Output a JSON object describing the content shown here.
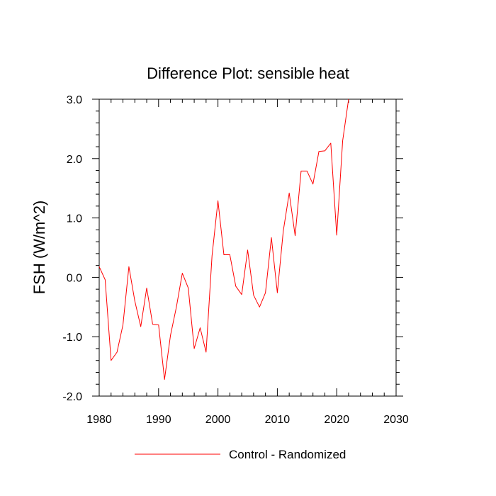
{
  "chart_data": {
    "type": "line",
    "title": "Difference Plot: sensible heat",
    "xlabel": "",
    "ylabel": "FSH  (W/m^2)",
    "xlim": [
      1980,
      2030
    ],
    "ylim": [
      -2.0,
      3.0
    ],
    "x_ticks": [
      1980,
      1990,
      2000,
      2010,
      2020,
      2030
    ],
    "x_tick_labels": [
      "1980",
      "1990",
      "2000",
      "2010",
      "2020",
      "2030"
    ],
    "y_ticks": [
      -2.0,
      -1.0,
      0.0,
      1.0,
      2.0,
      3.0
    ],
    "y_tick_labels": [
      "-2.0",
      "-1.0",
      "0.0",
      "1.0",
      "2.0",
      "3.0"
    ],
    "legend_position": "bottom-center",
    "series": [
      {
        "name": "Control - Randomized",
        "color": "#ff0000",
        "x": [
          1980,
          1981,
          1982,
          1983,
          1984,
          1985,
          1986,
          1987,
          1988,
          1989,
          1990,
          1991,
          1992,
          1993,
          1994,
          1995,
          1996,
          1997,
          1998,
          1999,
          2000,
          2001,
          2002,
          2003,
          2004,
          2005,
          2006,
          2007,
          2008,
          2009,
          2010,
          2011,
          2012,
          2013,
          2014,
          2015,
          2016,
          2017,
          2018,
          2019,
          2020,
          2021,
          2022
        ],
        "y": [
          0.18,
          -0.04,
          -1.4,
          -1.26,
          -0.8,
          0.18,
          -0.4,
          -0.83,
          -0.18,
          -0.79,
          -0.8,
          -1.72,
          -0.98,
          -0.5,
          0.07,
          -0.18,
          -1.2,
          -0.85,
          -1.26,
          0.36,
          1.29,
          0.38,
          0.38,
          -0.15,
          -0.29,
          0.46,
          -0.3,
          -0.5,
          -0.26,
          0.67,
          -0.26,
          0.78,
          1.42,
          0.7,
          1.79,
          1.79,
          1.57,
          2.12,
          2.13,
          2.26,
          0.71,
          2.3,
          3.0
        ]
      }
    ]
  }
}
